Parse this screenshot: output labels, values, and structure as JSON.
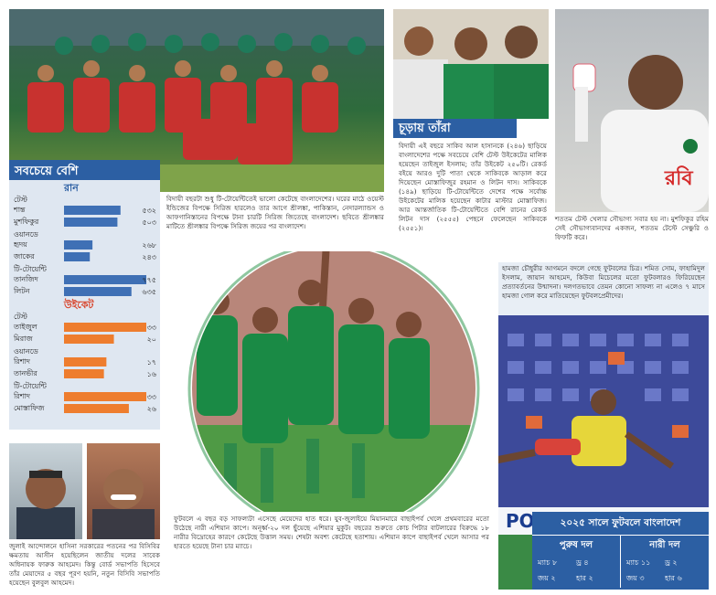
{
  "team_photo": {
    "caption": "বিদায়ী বছরটা শুধু টি-টোয়েন্টিতেই ভালো কেটেছে বাংলাদেশের। ঘরের মাঠে ওয়েস্ট ইন্ডিজের বিপক্ষে সিরিজ হারলেও তার আগে শ্রীলঙ্কা, পাকিস্তান, নেদারল্যান্ডস ও আফগানিস্তানের বিপক্ষে টানা চারটি সিরিজ জিতেছে বাংলাদেশ। ছবিতে শ্রীলঙ্কার মাটিতে শ্রীলঙ্কার বিপক্ষে সিরিজ জয়ের পর বাংলাদেশ।"
  },
  "stats": {
    "title": "সবচেয়ে বেশি",
    "sections": [
      {
        "heading": "রান",
        "color": "#3f70b5",
        "groups": [
          {
            "format": "টেস্ট",
            "rows": [
              {
                "name": "শান্ত",
                "value": {
                  "value": 532,
                  "label": "৫৩২"
                }
              },
              {
                "name": "মুশফিকুর",
                "value": {
                  "value": 503,
                  "label": "৫০৩"
                }
              }
            ]
          },
          {
            "format": "ওয়ানডে",
            "rows": [
              {
                "name": "হৃদয়",
                "value": {
                  "value": 268,
                  "label": "২৬৮"
                }
              },
              {
                "name": "জাকের",
                "value": {
                  "value": 243,
                  "label": "২৪৩"
                }
              }
            ]
          },
          {
            "format": "টি-টোয়েন্টি",
            "rows": [
              {
                "name": "তানজিদ",
                "value": {
                  "value": 775,
                  "label": "৭৭৫"
                }
              },
              {
                "name": "লিটন",
                "value": {
                  "value": 635,
                  "label": "৬৩৫"
                }
              }
            ]
          }
        ]
      },
      {
        "heading": "উইকেট",
        "color": "#ee7d2e",
        "groups": [
          {
            "format": "টেস্ট",
            "rows": [
              {
                "name": "তাইজুল",
                "value": {
                  "value": 33,
                  "label": "৩৩"
                }
              },
              {
                "name": "মিরাজ",
                "value": {
                  "value": 20,
                  "label": "২০"
                }
              }
            ]
          },
          {
            "format": "ওয়ানডে",
            "rows": [
              {
                "name": "রিশাদ",
                "value": {
                  "value": 17,
                  "label": "১৭"
                }
              },
              {
                "name": "তানভীর",
                "value": {
                  "value": 16,
                  "label": "১৬"
                }
              }
            ]
          },
          {
            "format": "টি-টোয়েন্টি",
            "rows": [
              {
                "name": "রিশাদ",
                "value": {
                  "value": 33,
                  "label": "৩৩"
                }
              },
              {
                "name": "মোস্তাফিজ",
                "value": {
                  "value": 26,
                  "label": "২৬"
                }
              }
            ]
          }
        ]
      }
    ]
  },
  "records": {
    "heading": "চূড়ায় তাঁরা",
    "text": "বিদায়ী এই বছরে সাকিব আল হাসানকে (২৪৬) ছাড়িয়ে বাংলাদেশের পক্ষে সবচেয়ে বেশি টেস্ট উইকেটের মালিক হয়েছেন তাইজুল ইসলাম; তাঁর উইকেট ২৫০টি। রেকর্ড বইয়ে আরও দুটি পাতা থেকে সাকিবকে আড়াল করে দিয়েছেন মোস্তাফিজুর রহমান ও লিটন দাস। সাকিবকে (১৪৯) ছাড়িয়ে টি-টোয়েন্টিতে দেশের পক্ষে সর্বোচ্চ উইকেটের মালিক হয়েছেন কাটার মাস্টার মোস্তাফিজ। আর আন্তর্জাতিক টি-টোয়েন্টিতে বেশি রানের রেকর্ড লিটন দাস (২৫৫৫) পেছনে ফেলেছেন সাকিবকে (২৫৫১)।"
  },
  "mushfiq_photo": {
    "jersey_text": "রবি",
    "caption": "শততম টেস্ট খেলার সৌভাগ্য সবার হয় না। মুশফিকুর রহিম সেই সৌভাগ্যবানদের একজন, শততম টেস্টে সেঞ্চুরি ও ফিফটি করে।"
  },
  "women_photo": {
    "caption": "ফুটবলে এ বছর বড় সাফল্যটা এসেছে মেয়েদের হাত ধরে। যুব-জুলাইয়ে মিয়ানমারে বাছাইপর্ব খেলে প্রথমবারের মতো উঠেছে নারী এশিয়ান কাপে। অনূর্ধ্ব-২০ দল ছুঁয়েছে এশিয়ার মুকুট। বছরের শুরুতে কোচ পিটার বাটলারের বিরুদ্ধে ১৮ নারীর বিদ্রোহের কারণে কেটেছে উত্তাল সময়। শেষটা অবশ্য কেটেছে হতাশায়। এশিয়ান কাপে বাছাইপর্ব খেলে আসার পর হারতে হয়েছে টানা চার ম্যাচে।"
  },
  "hamza_photo": {
    "caption": "হামজা চৌধুরীর আগমনে বদলে গেছে ফুটবলের চিত্র। শমিত সোম, ফাহামিদুল ইসলাম, জায়ান আহমেদ, কিউবা মিচেলের মতো ফুটবলারও ফিরিয়েছেন প্রত্যাবর্তনের উন্মাদনা। দলগতভাবে তেমন কোনো সাফল্য না এলেও ৭ মাসে হামজা গোল করে মাতিয়েছেন ফুটবলপ্রেমীদের।",
    "banner_text": "POCARI SWEA"
  },
  "football_summary": {
    "title": "২০২৫ সালে ফুটবলে বাংলাদেশ",
    "teams": [
      {
        "name": "পুরুষ দল",
        "lines": [
          "ম্যাচ ৮",
          "ড্র ৪",
          "জয় ২",
          "হার ২"
        ]
      },
      {
        "name": "নারী দল",
        "lines": [
          "ম্যাচ ১১",
          "ড্র ২",
          "জয় ৩",
          "হার ৬"
        ]
      }
    ]
  },
  "bcb": {
    "caption": "জুলাই আন্দোলনে হাসিনা সরকারের পতনের পর বিসিবির ক্ষমতায় আসীন হয়েছিলেন জাতীয় দলের সাবেক অধিনায়ক ফারুক আহমেদ। কিন্তু বোর্ড সভাপতি হিসেবে তাঁর মেয়াদের ৫ বছর পূরণ হয়নি, নতুন বিসিবি সভাপতি হয়েছেন বুলবুল আহমেদ।"
  }
}
